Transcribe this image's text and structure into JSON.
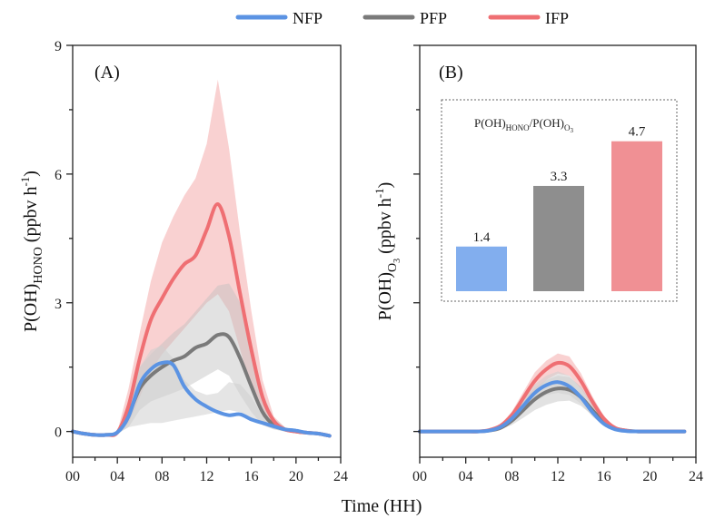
{
  "colors": {
    "NFP": "#5b93e3",
    "PFP": "#7a7a7a",
    "IFP": "#ef6f73"
  },
  "legend": [
    {
      "name": "NFP",
      "color": "#5b93e3"
    },
    {
      "name": "PFP",
      "color": "#7a7a7a"
    },
    {
      "name": "IFP",
      "color": "#ef6f73"
    }
  ],
  "xlabel": "Time (HH)",
  "chart_data": [
    {
      "type": "line",
      "panel_label": "(A)",
      "ylabel_main": "P(OH)",
      "ylabel_sub": "HONO",
      "ylabel_unit": " (ppbv h",
      "ylabel_exp": "-1",
      "ylabel_close": ")",
      "xlim": [
        0,
        24
      ],
      "ylim": [
        -0.6,
        9
      ],
      "xticks": [
        0,
        4,
        8,
        12,
        16,
        20,
        24
      ],
      "xtick_labels": [
        "00",
        "04",
        "08",
        "12",
        "16",
        "20",
        "24"
      ],
      "yticks": [
        0,
        3,
        6,
        9
      ],
      "ytick_labels": [
        "0",
        "3",
        "6",
        "9"
      ],
      "x": [
        0,
        1,
        2,
        3,
        4,
        5,
        6,
        7,
        8,
        9,
        10,
        11,
        12,
        13,
        14,
        15,
        16,
        17,
        18,
        19,
        20,
        21,
        22,
        23
      ],
      "series": [
        {
          "name": "NFP",
          "values": [
            0,
            -0.05,
            -0.08,
            -0.08,
            -0.02,
            0.35,
            1.1,
            1.45,
            1.6,
            1.55,
            1.05,
            0.75,
            0.58,
            0.45,
            0.38,
            0.4,
            0.28,
            0.2,
            0.12,
            0.05,
            0.02,
            -0.03,
            -0.05,
            -0.1
          ],
          "band_low": [
            0,
            -0.05,
            -0.08,
            -0.08,
            -0.05,
            0.1,
            0.15,
            0.2,
            0.2,
            0.25,
            0.3,
            0.35,
            0.4,
            0.45,
            0.5,
            0.45,
            0.3,
            0.15,
            0.05,
            0.0,
            0.0,
            -0.02,
            -0.05,
            -0.1
          ],
          "band_high": [
            0,
            -0.05,
            -0.08,
            -0.08,
            0.0,
            0.6,
            1.5,
            1.9,
            2.0,
            1.7,
            1.2,
            0.95,
            0.85,
            0.9,
            1.15,
            1.1,
            0.8,
            0.35,
            0.15,
            0.05,
            0.02,
            -0.02,
            -0.05,
            -0.1
          ]
        },
        {
          "name": "PFP",
          "values": [
            0,
            -0.05,
            -0.08,
            -0.08,
            -0.02,
            0.4,
            1.0,
            1.3,
            1.5,
            1.65,
            1.75,
            1.95,
            2.05,
            2.25,
            2.2,
            1.7,
            1.05,
            0.45,
            0.15,
            0.05,
            0.0,
            -0.03,
            -0.05,
            -0.1
          ],
          "band_low": [
            0,
            -0.05,
            -0.08,
            -0.08,
            -0.05,
            0.1,
            0.5,
            0.7,
            0.8,
            0.9,
            1.0,
            1.15,
            1.3,
            1.45,
            1.3,
            0.85,
            0.45,
            0.15,
            0.05,
            0.0,
            0.0,
            -0.02,
            -0.05,
            -0.1
          ],
          "band_high": [
            0,
            -0.05,
            -0.08,
            -0.08,
            0.0,
            0.7,
            1.5,
            1.8,
            2.05,
            2.3,
            2.5,
            2.8,
            3.1,
            3.4,
            3.45,
            3.0,
            2.1,
            0.9,
            0.3,
            0.1,
            0.0,
            -0.03,
            -0.05,
            -0.1
          ]
        },
        {
          "name": "IFP",
          "values": [
            0,
            -0.05,
            -0.08,
            -0.08,
            -0.02,
            0.6,
            1.7,
            2.6,
            3.1,
            3.55,
            3.9,
            4.1,
            4.7,
            5.3,
            4.55,
            3.2,
            1.9,
            0.8,
            0.25,
            0.05,
            0.0,
            -0.03,
            -0.05,
            -0.1
          ],
          "band_low": [
            0,
            -0.05,
            -0.08,
            -0.08,
            -0.05,
            0.2,
            0.8,
            1.4,
            1.8,
            2.1,
            2.4,
            2.7,
            3.0,
            3.2,
            2.8,
            1.9,
            1.0,
            0.35,
            0.1,
            0.0,
            0.0,
            -0.02,
            -0.05,
            -0.1
          ],
          "band_high": [
            0,
            -0.05,
            -0.08,
            -0.08,
            0.0,
            1.0,
            2.3,
            3.5,
            4.4,
            5.0,
            5.5,
            5.9,
            6.7,
            8.2,
            6.6,
            4.6,
            2.8,
            1.2,
            0.35,
            0.1,
            0.0,
            -0.03,
            -0.05,
            -0.1
          ]
        }
      ]
    },
    {
      "type": "line",
      "panel_label": "(B)",
      "ylabel_main": "P(OH)",
      "ylabel_sub": "O",
      "ylabel_subsub": "3",
      "ylabel_unit": " (ppbv h",
      "ylabel_exp": "-1",
      "ylabel_close": ")",
      "xlim": [
        0,
        24
      ],
      "ylim": [
        -0.6,
        9
      ],
      "xticks": [
        0,
        4,
        8,
        12,
        16,
        20,
        24
      ],
      "xtick_labels": [
        "00",
        "04",
        "08",
        "12",
        "16",
        "20",
        "24"
      ],
      "yticks": [
        0,
        3,
        6,
        9
      ],
      "x": [
        0,
        1,
        2,
        3,
        4,
        5,
        6,
        7,
        8,
        9,
        10,
        11,
        12,
        13,
        14,
        15,
        16,
        17,
        18,
        19,
        20,
        21,
        22,
        23
      ],
      "series": [
        {
          "name": "NFP",
          "values": [
            0,
            0,
            0,
            0,
            0,
            0,
            0.02,
            0.1,
            0.3,
            0.6,
            0.9,
            1.08,
            1.15,
            1.05,
            0.8,
            0.45,
            0.18,
            0.05,
            0.01,
            0,
            0,
            0,
            0,
            0
          ],
          "band_low": [
            0,
            0,
            0,
            0,
            0,
            0,
            0.01,
            0.07,
            0.22,
            0.45,
            0.7,
            0.85,
            0.9,
            0.85,
            0.65,
            0.35,
            0.13,
            0.03,
            0.01,
            0,
            0,
            0,
            0,
            0
          ],
          "band_high": [
            0,
            0,
            0,
            0,
            0,
            0,
            0.03,
            0.13,
            0.38,
            0.75,
            1.1,
            1.3,
            1.4,
            1.3,
            1.0,
            0.55,
            0.22,
            0.07,
            0.02,
            0,
            0,
            0,
            0,
            0
          ]
        },
        {
          "name": "PFP",
          "values": [
            0,
            0,
            0,
            0,
            0,
            0,
            0.02,
            0.08,
            0.25,
            0.5,
            0.75,
            0.92,
            1.0,
            0.97,
            0.8,
            0.5,
            0.22,
            0.07,
            0.02,
            0,
            0,
            0,
            0,
            0
          ],
          "band_low": [
            0,
            0,
            0,
            0,
            0,
            0,
            0.01,
            0.05,
            0.15,
            0.32,
            0.5,
            0.62,
            0.7,
            0.72,
            0.6,
            0.38,
            0.16,
            0.05,
            0.01,
            0,
            0,
            0,
            0,
            0
          ],
          "band_high": [
            0,
            0,
            0,
            0,
            0,
            0,
            0.03,
            0.12,
            0.36,
            0.7,
            1.02,
            1.2,
            1.3,
            1.27,
            1.05,
            0.66,
            0.3,
            0.1,
            0.03,
            0,
            0,
            0,
            0,
            0
          ]
        },
        {
          "name": "IFP",
          "values": [
            0,
            0,
            0,
            0,
            0,
            0,
            0.03,
            0.13,
            0.38,
            0.78,
            1.18,
            1.45,
            1.6,
            1.52,
            1.18,
            0.7,
            0.3,
            0.08,
            0.02,
            0,
            0,
            0,
            0,
            0
          ],
          "band_low": [
            0,
            0,
            0,
            0,
            0,
            0,
            0.02,
            0.1,
            0.3,
            0.62,
            0.95,
            1.2,
            1.35,
            1.3,
            1.0,
            0.58,
            0.24,
            0.06,
            0.01,
            0,
            0,
            0,
            0,
            0
          ],
          "band_high": [
            0,
            0,
            0,
            0,
            0,
            0,
            0.04,
            0.16,
            0.46,
            0.92,
            1.38,
            1.65,
            1.82,
            1.75,
            1.36,
            0.82,
            0.36,
            0.1,
            0.03,
            0,
            0,
            0,
            0,
            0
          ]
        }
      ]
    },
    {
      "type": "bar",
      "title_main": "P(OH)",
      "title_sub1": "HONO",
      "title_mid": "/P(OH)",
      "title_sub2": "O",
      "title_sub2b": "3",
      "categories": [
        "NFP",
        "PFP",
        "IFP"
      ],
      "values": [
        1.4,
        3.3,
        4.7
      ],
      "value_labels": [
        "1.4",
        "3.3",
        "4.7"
      ],
      "ylim": [
        0,
        6.0
      ]
    }
  ]
}
